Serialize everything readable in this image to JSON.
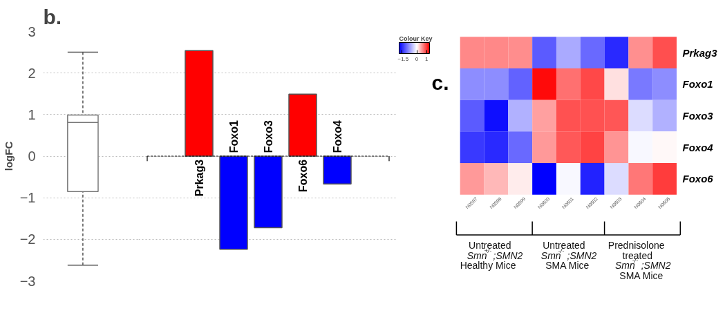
{
  "chart_data": [
    {
      "type": "box",
      "title": "b.",
      "ylabel": "logFC",
      "categories": [
        null
      ],
      "ylim": [
        -3,
        3
      ],
      "yticks": [
        -3,
        -2,
        -1,
        0,
        1,
        2,
        3
      ],
      "grid": "y",
      "color": "#ffffff",
      "boxes": [
        {
          "low": -2.62,
          "q1": -0.85,
          "median": 0.81,
          "q3": 0.99,
          "high": 2.5
        }
      ]
    },
    {
      "type": "bar",
      "categories": [
        "Prkag3",
        "Foxo1",
        "Foxo3",
        "Foxo6",
        "Foxo4"
      ],
      "ylim": [
        -3,
        3
      ],
      "yticks": [
        -3,
        -2,
        -1,
        0,
        1,
        2,
        3
      ],
      "grid": "y",
      "tick_labels": false,
      "ref_lines": [
        {
          "axis": "y",
          "value": 0,
          "color": "#000000",
          "line_style": "dashed"
        }
      ],
      "colors": [
        "#ff0000",
        "#0000ff",
        "#0000ff",
        "#ff0000",
        "#0000ff"
      ],
      "values": [
        2.54,
        -2.24,
        -1.72,
        1.49,
        -0.67
      ]
    },
    {
      "type": "heatmap",
      "title": "c.",
      "clabel": "Colour Key",
      "categories": [
        "N0597",
        "N0598",
        "N0599",
        "N0600",
        "N0601",
        "N0602",
        "N0603",
        "N0604",
        "N0606"
      ],
      "y_categories": [
        "Prkag3",
        "Foxo1",
        "Foxo3",
        "Foxo4",
        "Foxo6"
      ],
      "cells": [
        [
          0.6,
          0.6,
          0.58,
          -1.15,
          -0.6,
          -1.05,
          -1.5,
          0.57,
          0.9
        ],
        [
          -0.8,
          -0.8,
          -1.1,
          1.25,
          0.73,
          0.93,
          0.15,
          -0.95,
          -0.8
        ],
        [
          -1.15,
          -1.7,
          -0.55,
          0.48,
          0.88,
          0.88,
          0.86,
          -0.25,
          -0.55
        ],
        [
          -1.4,
          -1.5,
          -1.05,
          0.52,
          0.84,
          0.95,
          0.54,
          -0.05,
          0.04
        ],
        [
          0.52,
          0.36,
          0.1,
          -1.8,
          -0.05,
          -1.55,
          -0.25,
          0.69,
          0.99
        ]
      ],
      "clim": [
        -1.8,
        1.3
      ],
      "cticks": [
        -1.5,
        0,
        1
      ],
      "colors": [
        "#0000ff",
        "#ffffff",
        "#ff0000"
      ],
      "annotations": [
        "Untreated\nSmn$^{+/-}$;SMN2\nHealthy Mice",
        "Untreated\nSmn$^{-/-}$;SMN2\nSMA Mice",
        "Prednisolone\ntreated\nSmn$^{-/-}$;SMN2\nSMA Mice"
      ]
    }
  ]
}
